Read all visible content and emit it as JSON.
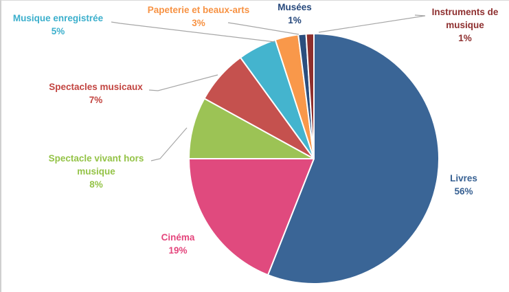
{
  "chart_data": {
    "type": "pie",
    "title": "",
    "unit": "%",
    "direction": "clockwise",
    "start_angle_deg": 0,
    "legend": "none",
    "labels_outside": true,
    "categories": [
      "Livres",
      "Cinéma",
      "Spectacle vivant hors musique",
      "Spectacles musicaux",
      "Musique enregistrée",
      "Papeterie et beaux-arts",
      "Musées",
      "Instruments de musique"
    ],
    "values": [
      56,
      19,
      8,
      7,
      5,
      3,
      1,
      1
    ],
    "slices": [
      {
        "label": "Livres",
        "value": 56,
        "pct_label": "56%",
        "color": "#3A6596",
        "label_color": "#376092"
      },
      {
        "label": "Cinéma",
        "value": 19,
        "pct_label": "19%",
        "color": "#E04A7E",
        "label_color": "#E4457C"
      },
      {
        "label": "Spectacle vivant hors musique",
        "value": 8,
        "pct_label": "8%",
        "color": "#9CC355",
        "label_color": "#94C347"
      },
      {
        "label": "Spectacles musicaux",
        "value": 7,
        "pct_label": "7%",
        "color": "#C5514E",
        "label_color": "#C24440"
      },
      {
        "label": "Musique enregistrée",
        "value": 5,
        "pct_label": "5%",
        "color": "#44B4CE",
        "label_color": "#3BAFCC"
      },
      {
        "label": "Papeterie et beaux-arts",
        "value": 3,
        "pct_label": "3%",
        "color": "#F9984A",
        "label_color": "#F79243"
      },
      {
        "label": "Musées",
        "value": 1,
        "pct_label": "1%",
        "color": "#2B4E7E",
        "label_color": "#25477B"
      },
      {
        "label": "Instruments de musique",
        "value": 1,
        "pct_label": "1%",
        "color": "#8E2F2D",
        "label_color": "#8E2F2F"
      }
    ]
  }
}
